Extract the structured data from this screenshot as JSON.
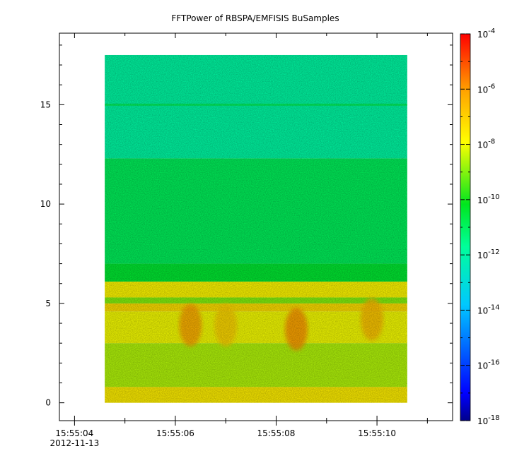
{
  "chart_data": {
    "type": "heatmap",
    "title": "FFTPower of RBSPA/EMFISIS  BuSamples",
    "xlabel": "",
    "ylabel": "",
    "x_ticks": [
      {
        "label": "15:55:04",
        "sublabel": "2012-11-13"
      },
      {
        "label": "15:55:06"
      },
      {
        "label": "15:55:08"
      },
      {
        "label": "15:55:10"
      }
    ],
    "x_range_seconds": [
      3.7,
      11.5
    ],
    "data_time_range_seconds": [
      4.6,
      10.6
    ],
    "y_ticks": [
      0,
      5,
      10,
      15
    ],
    "ylim": [
      -0.9,
      18.6
    ],
    "data_y_range": [
      0,
      17.5
    ],
    "z_scale": "log",
    "z_range": [
      1e-18,
      0.0001
    ],
    "colorbar_ticks": [
      {
        "base": "10",
        "exp": "-4",
        "value": -4
      },
      {
        "base": "10",
        "exp": "-6",
        "value": -6
      },
      {
        "base": "10",
        "exp": "-8",
        "value": -8
      },
      {
        "base": "10",
        "exp": "-10",
        "value": -10
      },
      {
        "base": "10",
        "exp": "-12",
        "value": -12
      },
      {
        "base": "10",
        "exp": "-14",
        "value": -14
      },
      {
        "base": "10",
        "exp": "-16",
        "value": -16
      },
      {
        "base": "10",
        "exp": "-18",
        "value": -18
      }
    ],
    "colormap": [
      "#00008b",
      "#0000ff",
      "#00c8ff",
      "#00ff9a",
      "#00e61e",
      "#ffff00",
      "#ffa500",
      "#ff0000"
    ],
    "spectral_levels_log10": [
      {
        "y_from": 0,
        "y_to": 0.8,
        "level": -7.6
      },
      {
        "y_from": 0.8,
        "y_to": 3.0,
        "level": -8.6
      },
      {
        "y_from": 3.0,
        "y_to": 4.6,
        "level": -8.0
      },
      {
        "y_from": 4.6,
        "y_to": 5.0,
        "level": -7.3
      },
      {
        "y_from": 5.0,
        "y_to": 5.3,
        "level": -9.0
      },
      {
        "y_from": 5.3,
        "y_to": 6.1,
        "level": -7.8
      },
      {
        "y_from": 6.1,
        "y_to": 7.0,
        "level": -10.4
      },
      {
        "y_from": 7.0,
        "y_to": 12.3,
        "level": -10.9
      },
      {
        "y_from": 12.3,
        "y_to": 17.5,
        "level": -11.9
      }
    ],
    "emission_bursts": [
      {
        "time_seconds": 6.3,
        "y_center": 3.9,
        "level": -6.1
      },
      {
        "time_seconds": 8.4,
        "y_center": 3.7,
        "level": -5.9
      },
      {
        "time_seconds": 9.9,
        "y_center": 4.2,
        "level": -6.6
      },
      {
        "time_seconds": 7.0,
        "y_center": 3.9,
        "level": -7.0
      }
    ],
    "constant_line": {
      "y": 15.0,
      "level": -11.0
    }
  }
}
